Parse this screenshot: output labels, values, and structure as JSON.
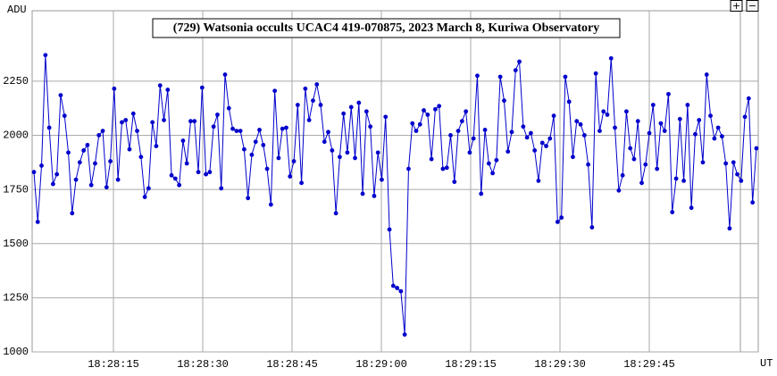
{
  "chart_data": {
    "type": "line",
    "title": "(729) Watsonia occults UCAC4 419-070875, 2023 March 8, Kuriwa Observatory",
    "y_label": "ADU",
    "x_label": "UT",
    "buttons": [
      "+",
      "−"
    ],
    "xlim": [
      1.35,
      123.3
    ],
    "ylim": [
      1000,
      2575
    ],
    "xticks": [
      {
        "value": 15,
        "label": "18:28:15"
      },
      {
        "value": 30,
        "label": "18:28:30"
      },
      {
        "value": 45,
        "label": "18:28:45"
      },
      {
        "value": 60,
        "label": "18:29:00"
      },
      {
        "value": 75,
        "label": "18:29:15"
      },
      {
        "value": 90,
        "label": "18:29:30"
      },
      {
        "value": 105,
        "label": "18:29:45"
      }
    ],
    "yticks": [
      1000,
      1250,
      1500,
      1750,
      2000,
      2250
    ],
    "grid": true,
    "x": [
      1.65,
      2.29,
      2.93,
      3.58,
      4.22,
      4.86,
      5.5,
      6.14,
      6.79,
      7.43,
      8.07,
      8.71,
      9.35,
      10.0,
      10.64,
      11.28,
      11.92,
      12.56,
      13.21,
      13.85,
      14.49,
      15.13,
      15.77,
      16.42,
      17.06,
      17.7,
      18.34,
      18.98,
      19.63,
      20.27,
      20.91,
      21.55,
      22.19,
      22.84,
      23.48,
      24.12,
      24.76,
      25.4,
      26.05,
      26.69,
      27.33,
      27.97,
      28.61,
      29.26,
      29.9,
      30.54,
      31.18,
      31.82,
      32.47,
      33.11,
      33.75,
      34.39,
      35.03,
      35.68,
      36.32,
      36.96,
      37.6,
      38.24,
      38.89,
      39.53,
      40.17,
      40.81,
      41.45,
      42.1,
      42.74,
      43.38,
      44.02,
      44.66,
      45.31,
      45.95,
      46.59,
      47.23,
      47.87,
      48.52,
      49.16,
      49.8,
      50.44,
      51.08,
      51.73,
      52.37,
      53.01,
      53.65,
      54.29,
      54.94,
      55.58,
      56.22,
      56.86,
      57.5,
      58.15,
      58.79,
      59.43,
      60.07,
      60.71,
      61.36,
      62.0,
      62.64,
      63.28,
      63.92,
      64.57,
      65.21,
      65.85,
      66.49,
      67.13,
      67.78,
      68.42,
      69.06,
      69.7,
      70.34,
      70.99,
      71.63,
      72.27,
      72.91,
      73.55,
      74.2,
      74.84,
      75.48,
      76.12,
      76.76,
      77.41,
      78.05,
      78.69,
      79.33,
      79.97,
      80.62,
      81.26,
      81.9,
      82.54,
      83.18,
      83.83,
      84.47,
      85.11,
      85.75,
      86.39,
      87.04,
      87.68,
      88.32,
      88.96,
      89.6,
      90.25,
      90.89,
      91.53,
      92.17,
      92.81,
      93.46,
      94.1,
      94.74,
      95.38,
      96.02,
      96.67,
      97.31,
      97.95,
      98.59,
      99.23,
      99.88,
      100.52,
      101.16,
      101.8,
      102.44,
      103.09,
      103.73,
      104.37,
      105.01,
      105.65,
      106.3,
      106.94,
      107.58,
      108.22,
      108.86,
      109.51,
      110.15,
      110.79,
      111.43,
      112.07,
      112.72,
      113.36,
      114.0,
      114.64,
      115.28,
      115.93,
      116.57,
      117.21,
      117.85,
      118.49,
      119.14,
      119.78,
      120.42,
      121.06,
      121.7,
      122.35,
      122.99
    ],
    "series": [
      {
        "color": "#0000cc",
        "values": [
          1830,
          1600,
          1860,
          2370,
          2035,
          1775,
          1820,
          2185,
          2090,
          1920,
          1640,
          1795,
          1875,
          1930,
          1955,
          1770,
          1870,
          2000,
          2020,
          1760,
          1880,
          2215,
          1795,
          2060,
          2070,
          1935,
          2100,
          2020,
          1900,
          1715,
          1755,
          2060,
          1950,
          2230,
          2070,
          2210,
          1815,
          1800,
          1770,
          1975,
          1870,
          2065,
          2065,
          1830,
          2220,
          1820,
          1830,
          2040,
          2095,
          1755,
          2280,
          2125,
          2030,
          2020,
          2020,
          1935,
          1710,
          1910,
          1970,
          2025,
          1955,
          1845,
          1680,
          2205,
          1895,
          2030,
          2035,
          1810,
          1880,
          2140,
          1780,
          2215,
          2070,
          2160,
          2235,
          2140,
          1970,
          2015,
          1930,
          1640,
          1900,
          2100,
          1920,
          2130,
          1895,
          2150,
          1730,
          2110,
          2040,
          1720,
          1920,
          1795,
          2085,
          1565,
          1305,
          1295,
          1280,
          1080,
          1845,
          2055,
          2020,
          2050,
          2115,
          2095,
          1890,
          2120,
          2135,
          1845,
          1850,
          2000,
          1785,
          2020,
          2065,
          2110,
          1920,
          1985,
          2275,
          1730,
          2025,
          1870,
          1825,
          1885,
          2270,
          2160,
          1925,
          2015,
          2300,
          2340,
          2040,
          1990,
          2010,
          1930,
          1790,
          1965,
          1950,
          1985,
          2090,
          1600,
          1620,
          2270,
          2155,
          1900,
          2065,
          2050,
          2000,
          1865,
          1575,
          2285,
          2020,
          2110,
          2095,
          2355,
          2035,
          1745,
          1815,
          2110,
          1940,
          1890,
          2065,
          1780,
          1865,
          2010,
          2140,
          1845,
          2055,
          2020,
          2190,
          1645,
          1800,
          2075,
          1790,
          2140,
          1665,
          2005,
          2070,
          1875,
          2280,
          2090,
          1985,
          2035,
          1995,
          1870,
          1570,
          1875,
          1820,
          1790,
          2085,
          2170,
          1690,
          1940
        ]
      }
    ]
  }
}
